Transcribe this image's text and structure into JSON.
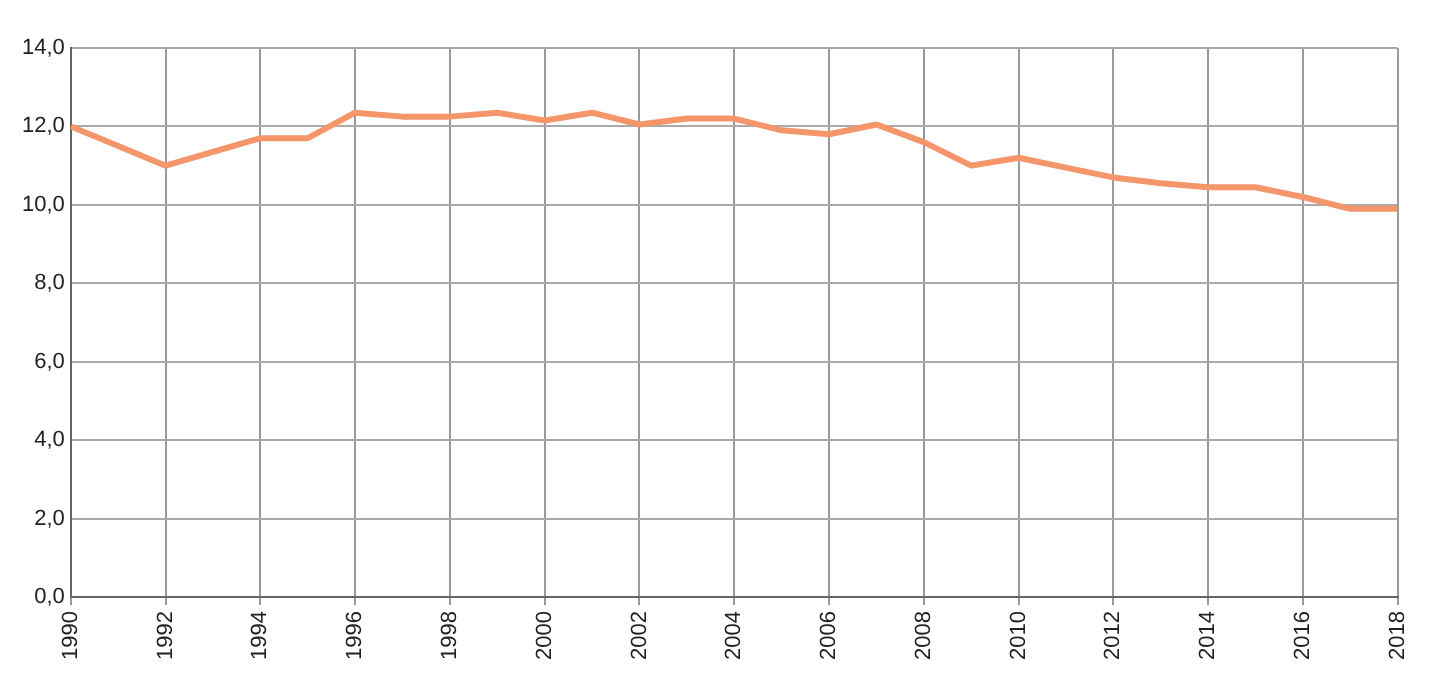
{
  "chart_data": {
    "type": "line",
    "x": [
      1990,
      1991,
      1992,
      1993,
      1994,
      1995,
      1996,
      1997,
      1998,
      1999,
      2000,
      2001,
      2002,
      2003,
      2004,
      2005,
      2006,
      2007,
      2008,
      2009,
      2010,
      2011,
      2012,
      2013,
      2014,
      2015,
      2016,
      2017,
      2018
    ],
    "series": [
      {
        "color": "#f4956a",
        "values": [
          12.0,
          11.5,
          11.0,
          11.35,
          11.7,
          11.7,
          12.35,
          12.25,
          12.25,
          12.35,
          12.15,
          12.35,
          12.05,
          12.2,
          12.2,
          11.9,
          11.8,
          12.05,
          11.6,
          11.0,
          11.2,
          10.95,
          10.7,
          10.55,
          10.45,
          10.45,
          10.2,
          9.9,
          9.9
        ]
      }
    ],
    "xlim": [
      1990,
      2018
    ],
    "xticks": [
      1990,
      1992,
      1994,
      1996,
      1998,
      2000,
      2002,
      2004,
      2006,
      2008,
      2010,
      2012,
      2014,
      2016,
      2018
    ],
    "ylim": [
      0,
      14
    ],
    "yticks": [
      {
        "value": 0,
        "label": "0,0"
      },
      {
        "value": 2,
        "label": "2,0"
      },
      {
        "value": 4,
        "label": "4,0"
      },
      {
        "value": 6,
        "label": "6,0"
      },
      {
        "value": 8,
        "label": "8,0"
      },
      {
        "value": 10,
        "label": "10,0"
      },
      {
        "value": 12,
        "label": "12,0"
      },
      {
        "value": 14,
        "label": "14,0"
      }
    ],
    "grid": true,
    "legend": false,
    "marker": "none",
    "line_style": "solid"
  }
}
